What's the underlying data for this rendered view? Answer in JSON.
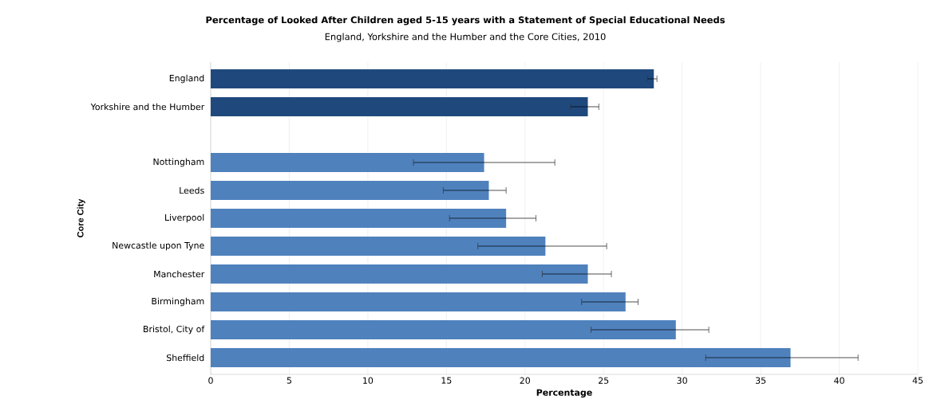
{
  "chart_data": {
    "type": "bar",
    "orientation": "horizontal",
    "title": "Percentage of Looked After Children aged 5-15 years with a Statement of Special Educational Needs",
    "subtitle": "England, Yorkshire and the Humber and the Core Cities, 2010",
    "xlabel": "Percentage",
    "ylabel": "Core City",
    "categories": [
      "England",
      "Yorkshire and the Humber",
      null,
      "Nottingham",
      "Leeds",
      "Liverpool",
      "Newcastle upon Tyne",
      "Manchester",
      "Birmingham",
      "Bristol, City of",
      "Sheffield"
    ],
    "values": [
      28.2,
      24.0,
      null,
      17.4,
      17.7,
      18.8,
      21.3,
      24.0,
      26.4,
      29.6,
      36.9
    ],
    "errors": [
      [
        27.8,
        28.4
      ],
      [
        22.9,
        24.7
      ],
      null,
      [
        12.9,
        21.9
      ],
      [
        14.8,
        18.8
      ],
      [
        15.2,
        20.7
      ],
      [
        17.0,
        25.2
      ],
      [
        21.1,
        25.5
      ],
      [
        23.6,
        27.2
      ],
      [
        24.2,
        31.7
      ],
      [
        31.5,
        41.2
      ]
    ],
    "colors": [
      "#1f497d",
      "#1f497d",
      "#4f81bd",
      "#4f81bd",
      "#4f81bd",
      "#4f81bd",
      "#4f81bd",
      "#4f81bd",
      "#4f81bd",
      "#4f81bd",
      "#4f81bd"
    ],
    "xlim": [
      0,
      45
    ],
    "xticks": [
      0,
      5,
      10,
      15,
      20,
      25,
      30,
      35,
      40,
      45
    ],
    "grid": "x"
  }
}
